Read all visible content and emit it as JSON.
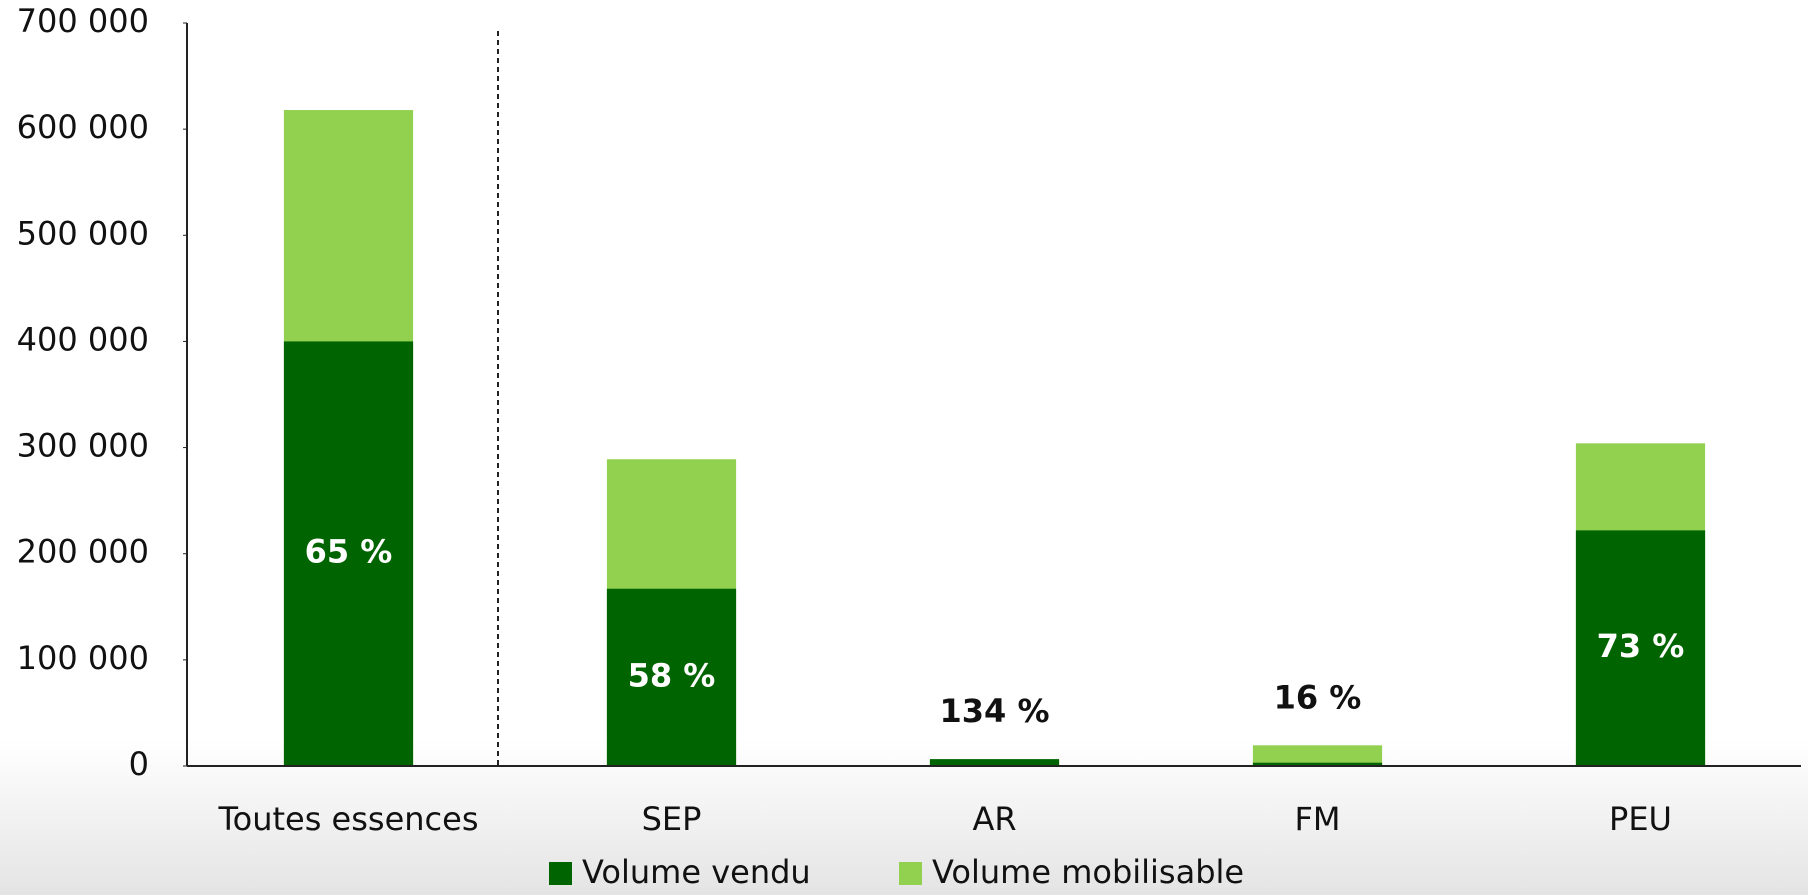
{
  "chart_data": {
    "type": "bar",
    "categories": [
      "Toutes essences",
      "SEP",
      "AR",
      "FM",
      "PEU"
    ],
    "series": [
      {
        "name": "Volume vendu",
        "color": "#006400",
        "values": [
          400000,
          167000,
          6500,
          3100,
          222000
        ]
      },
      {
        "name": "Volume mobilisable",
        "color": "#92d050",
        "values": [
          618000,
          289000,
          4850,
          19500,
          304000
        ]
      }
    ],
    "annotations": [
      {
        "value": 65,
        "label": "65 %"
      },
      {
        "value": 58,
        "label": "58 %"
      },
      {
        "value": 134,
        "label": "134 %"
      },
      {
        "value": 16,
        "label": "16 %"
      },
      {
        "value": 73,
        "label": "73 %"
      }
    ],
    "ylim": [
      0,
      700000
    ],
    "yticks": [
      0,
      {
        "value": 100000,
        "label": "100 000"
      },
      {
        "value": 200000,
        "label": "200 000"
      },
      {
        "value": 300000,
        "label": "300 000"
      },
      {
        "value": 400000,
        "label": "400 000"
      },
      {
        "value": 500000,
        "label": "500 000"
      },
      {
        "value": 600000,
        "label": "600 000"
      },
      {
        "value": 700000,
        "label": "700 000"
      }
    ],
    "grid": false,
    "legend": "bottom"
  }
}
